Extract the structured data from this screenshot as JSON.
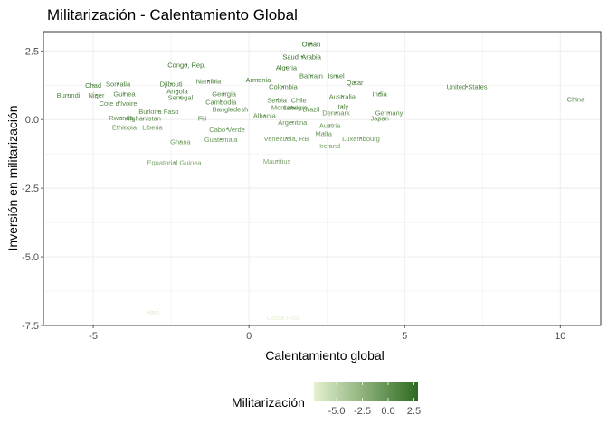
{
  "chart_data": {
    "type": "scatter",
    "title": "Militarización - Calentamiento Global",
    "xlabel": "Calentamiento global",
    "ylabel": "Inversión en militarización",
    "xlim": [
      -6.6,
      11.3
    ],
    "ylim": [
      -7.5,
      3.2
    ],
    "x_ticks": [
      -5,
      0,
      5,
      10
    ],
    "y_ticks": [
      2.5,
      0.0,
      -2.5,
      -5.0,
      -7.5
    ],
    "x_tick_labels": [
      "-5",
      "0",
      "5",
      "10"
    ],
    "y_tick_labels": [
      "2.5",
      "0.0",
      "-2.5",
      "-5.0",
      "-7.5"
    ],
    "grid": true,
    "legend": {
      "title": "Militarización",
      "placement": "bottom",
      "range": [
        -7.2,
        2.9
      ],
      "ticks": [
        -5.0,
        -2.5,
        0.0,
        2.5
      ],
      "tick_labels": [
        "-5.0",
        "-2.5",
        "0.0",
        "2.5"
      ],
      "color_low": "#e4f2cf",
      "color_high": "#2d6a1f"
    },
    "points": [
      {
        "label": "Oman",
        "x": 2.0,
        "y": 2.75
      },
      {
        "label": "Saudi Arabia",
        "x": 1.7,
        "y": 2.3
      },
      {
        "label": "Congo, Rep.",
        "x": -2.0,
        "y": 2.0
      },
      {
        "label": "Algeria",
        "x": 1.2,
        "y": 1.9
      },
      {
        "label": "Bahrain",
        "x": 2.0,
        "y": 1.6
      },
      {
        "label": "Israel",
        "x": 2.8,
        "y": 1.6
      },
      {
        "label": "Armenia",
        "x": 0.3,
        "y": 1.45
      },
      {
        "label": "Namibia",
        "x": -1.3,
        "y": 1.4
      },
      {
        "label": "Qatar",
        "x": 3.4,
        "y": 1.35
      },
      {
        "label": "Chad",
        "x": -5.0,
        "y": 1.25
      },
      {
        "label": "Somalia",
        "x": -4.2,
        "y": 1.3
      },
      {
        "label": "Djibouti",
        "x": -2.5,
        "y": 1.3
      },
      {
        "label": "Colombia",
        "x": 1.1,
        "y": 1.2
      },
      {
        "label": "United States",
        "x": 7.0,
        "y": 1.2
      },
      {
        "label": "Angola",
        "x": -2.3,
        "y": 1.05
      },
      {
        "label": "Georgia",
        "x": -0.8,
        "y": 0.95
      },
      {
        "label": "Guinea",
        "x": -4.0,
        "y": 0.95
      },
      {
        "label": "Burundi",
        "x": -5.8,
        "y": 0.9
      },
      {
        "label": "Niger",
        "x": -4.9,
        "y": 0.9
      },
      {
        "label": "India",
        "x": 4.2,
        "y": 0.95
      },
      {
        "label": "Senegal",
        "x": -2.2,
        "y": 0.82
      },
      {
        "label": "Australia",
        "x": 3.0,
        "y": 0.85
      },
      {
        "label": "China",
        "x": 10.5,
        "y": 0.75
      },
      {
        "label": "Serbia",
        "x": 0.9,
        "y": 0.72
      },
      {
        "label": "Chile",
        "x": 1.6,
        "y": 0.72
      },
      {
        "label": "Cambodia",
        "x": -0.9,
        "y": 0.65
      },
      {
        "label": "Cote d'Ivoire",
        "x": -4.2,
        "y": 0.6
      },
      {
        "label": "Montenegro",
        "x": 1.3,
        "y": 0.45
      },
      {
        "label": "Latvia",
        "x": 1.4,
        "y": 0.45
      },
      {
        "label": "Brazil",
        "x": 2.0,
        "y": 0.38
      },
      {
        "label": "Italy",
        "x": 3.0,
        "y": 0.48
      },
      {
        "label": "Bangladesh",
        "x": -0.6,
        "y": 0.38
      },
      {
        "label": "Burkina Faso",
        "x": -2.9,
        "y": 0.3
      },
      {
        "label": "Denmark",
        "x": 2.8,
        "y": 0.25
      },
      {
        "label": "Germany",
        "x": 4.5,
        "y": 0.25
      },
      {
        "label": "Albania",
        "x": 0.5,
        "y": 0.15
      },
      {
        "label": "Rwanda",
        "x": -4.1,
        "y": 0.08
      },
      {
        "label": "Afghanistan",
        "x": -3.4,
        "y": 0.05
      },
      {
        "label": "Fiji",
        "x": -1.5,
        "y": 0.05
      },
      {
        "label": "Japan",
        "x": 4.2,
        "y": 0.05
      },
      {
        "label": "Argentina",
        "x": 1.4,
        "y": -0.1
      },
      {
        "label": "Austria",
        "x": 2.6,
        "y": -0.2
      },
      {
        "label": "Ethiopia",
        "x": -4.0,
        "y": -0.28
      },
      {
        "label": "Liberia",
        "x": -3.1,
        "y": -0.28
      },
      {
        "label": "Cabo Verde",
        "x": -0.7,
        "y": -0.35
      },
      {
        "label": "Malta",
        "x": 2.4,
        "y": -0.5
      },
      {
        "label": "Venezuela, RB",
        "x": 1.2,
        "y": -0.68
      },
      {
        "label": "Guatemala",
        "x": -0.9,
        "y": -0.72
      },
      {
        "label": "Luxembourg",
        "x": 3.6,
        "y": -0.68
      },
      {
        "label": "Ghana",
        "x": -2.2,
        "y": -0.8
      },
      {
        "label": "Ireland",
        "x": 2.6,
        "y": -0.95
      },
      {
        "label": "Mauritius",
        "x": 0.9,
        "y": -1.5
      },
      {
        "label": "Equatorial Guinea",
        "x": -2.4,
        "y": -1.55
      },
      {
        "label": "Haiti",
        "x": -3.1,
        "y": -7.0
      },
      {
        "label": "Costa Rica",
        "x": 1.1,
        "y": -7.2
      }
    ]
  }
}
